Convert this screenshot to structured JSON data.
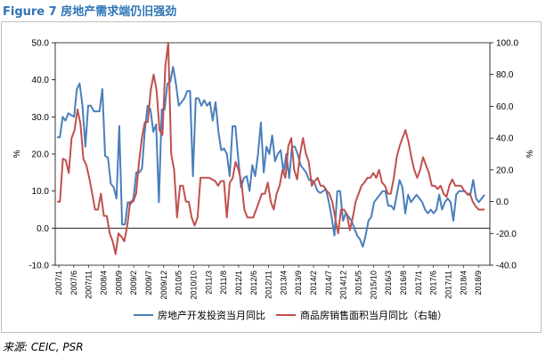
{
  "figure": {
    "title": "Figure 7 房地产需求端仍旧强劲",
    "source": "来源: CEIC, PSR"
  },
  "colors": {
    "series1": "#4a7ebb",
    "series2": "#c0504d",
    "frame": "#bfbfbf",
    "text": "#000000"
  },
  "chart_data": {
    "type": "line",
    "title": "",
    "ylabel_left": "%",
    "ylabel_right": "%",
    "ylim_left": [
      -10,
      50
    ],
    "ylim_right": [
      -40,
      100
    ],
    "yticks_left": [
      "-10.0",
      "0.0",
      "10.0",
      "20.0",
      "30.0",
      "40.0",
      "50.0"
    ],
    "yticks_right": [
      "-40.0",
      "-20.0",
      "0.0",
      "20.0",
      "40.0",
      "60.0",
      "80.0",
      "100.0"
    ],
    "grid": false,
    "legend_placement": "bottom",
    "xtick_labels": [
      "2007/1",
      "2007/6",
      "2007/11",
      "2008/4",
      "2008/9",
      "2009/2",
      "2009/7",
      "2009/12",
      "2010/5",
      "2010/10",
      "2011/3",
      "2011/8",
      "2012/1",
      "2012/6",
      "2012/11",
      "2013/4",
      "2013/9",
      "2014/2",
      "2014/7",
      "2014/12",
      "2015/5",
      "2015/10",
      "2016/3",
      "2016/8",
      "2017/1",
      "2017/6",
      "2017/11",
      "2018/4",
      "2018/9"
    ],
    "series": [
      {
        "name": "房地产开发投资当月同比",
        "axis": "left",
        "values": [
          24.5,
          24.5,
          30,
          29,
          31,
          30.5,
          30,
          37.5,
          39,
          33,
          22,
          33,
          33,
          31.5,
          31.5,
          31.5,
          37.5,
          19.5,
          19,
          12,
          11,
          8,
          27.5,
          1,
          1,
          7,
          6.5,
          8,
          15,
          15,
          16,
          26,
          33,
          32,
          26,
          28,
          7,
          32,
          32,
          39,
          39.5,
          43.5,
          39,
          33,
          34,
          35,
          37,
          37,
          14,
          35,
          35,
          33,
          34.5,
          33,
          34,
          29,
          34,
          26,
          21,
          21.5,
          20,
          14,
          27.5,
          27.5,
          19,
          11,
          13.5,
          14,
          10,
          17,
          14,
          20,
          28.5,
          15,
          22,
          20,
          25,
          18,
          20,
          21,
          15,
          20,
          13.5,
          22,
          22,
          20,
          17,
          16,
          15,
          13,
          13,
          12,
          10,
          9.5,
          10,
          10.5,
          7,
          3,
          -2,
          10,
          10,
          2,
          4,
          3,
          2,
          0,
          -2,
          -3,
          -5,
          -2,
          2,
          3,
          7,
          8,
          9,
          10,
          10,
          6,
          6,
          5,
          9,
          13,
          11,
          4,
          9,
          7,
          8,
          9,
          8,
          7,
          5,
          4,
          5,
          4,
          5,
          9,
          5,
          7,
          8,
          7,
          2,
          9,
          10,
          10,
          10,
          9,
          9,
          13,
          8,
          7,
          8,
          9
        ]
      },
      {
        "name": "商品房销售面积当月同比（右轴）",
        "axis": "right",
        "values": [
          0,
          0,
          27,
          26,
          18,
          40,
          45,
          58,
          49,
          27,
          23,
          15,
          5,
          -5,
          -5,
          5,
          -9,
          -9,
          -20,
          -25,
          -33,
          -20,
          -22,
          -25,
          -15,
          0,
          0,
          5,
          25,
          40,
          50,
          50,
          70,
          80,
          70,
          45,
          42,
          85,
          100,
          30,
          20,
          -10,
          10,
          10,
          0,
          0,
          -10,
          -15,
          -10,
          15,
          15,
          15,
          15,
          14,
          13,
          10,
          13,
          13,
          -10,
          12,
          15,
          25,
          20,
          12,
          -5,
          -10,
          -10,
          -10,
          -5,
          0,
          5,
          5,
          12,
          0,
          -5,
          5,
          10,
          20,
          15,
          35,
          40,
          20,
          14,
          30,
          40,
          30,
          25,
          10,
          13,
          15,
          10,
          10,
          7,
          5,
          0,
          -10,
          -20,
          -5,
          -5,
          -8,
          -18,
          -10,
          0,
          5,
          10,
          12,
          15,
          15,
          18,
          15,
          20,
          12,
          10,
          5,
          5,
          15,
          28,
          35,
          40,
          45,
          38,
          28,
          20,
          15,
          20,
          28,
          23,
          18,
          10,
          10,
          8,
          10,
          5,
          3,
          10,
          14,
          10,
          10,
          10,
          7,
          5,
          5,
          0,
          -3,
          -5,
          -5,
          -5
        ]
      }
    ]
  }
}
